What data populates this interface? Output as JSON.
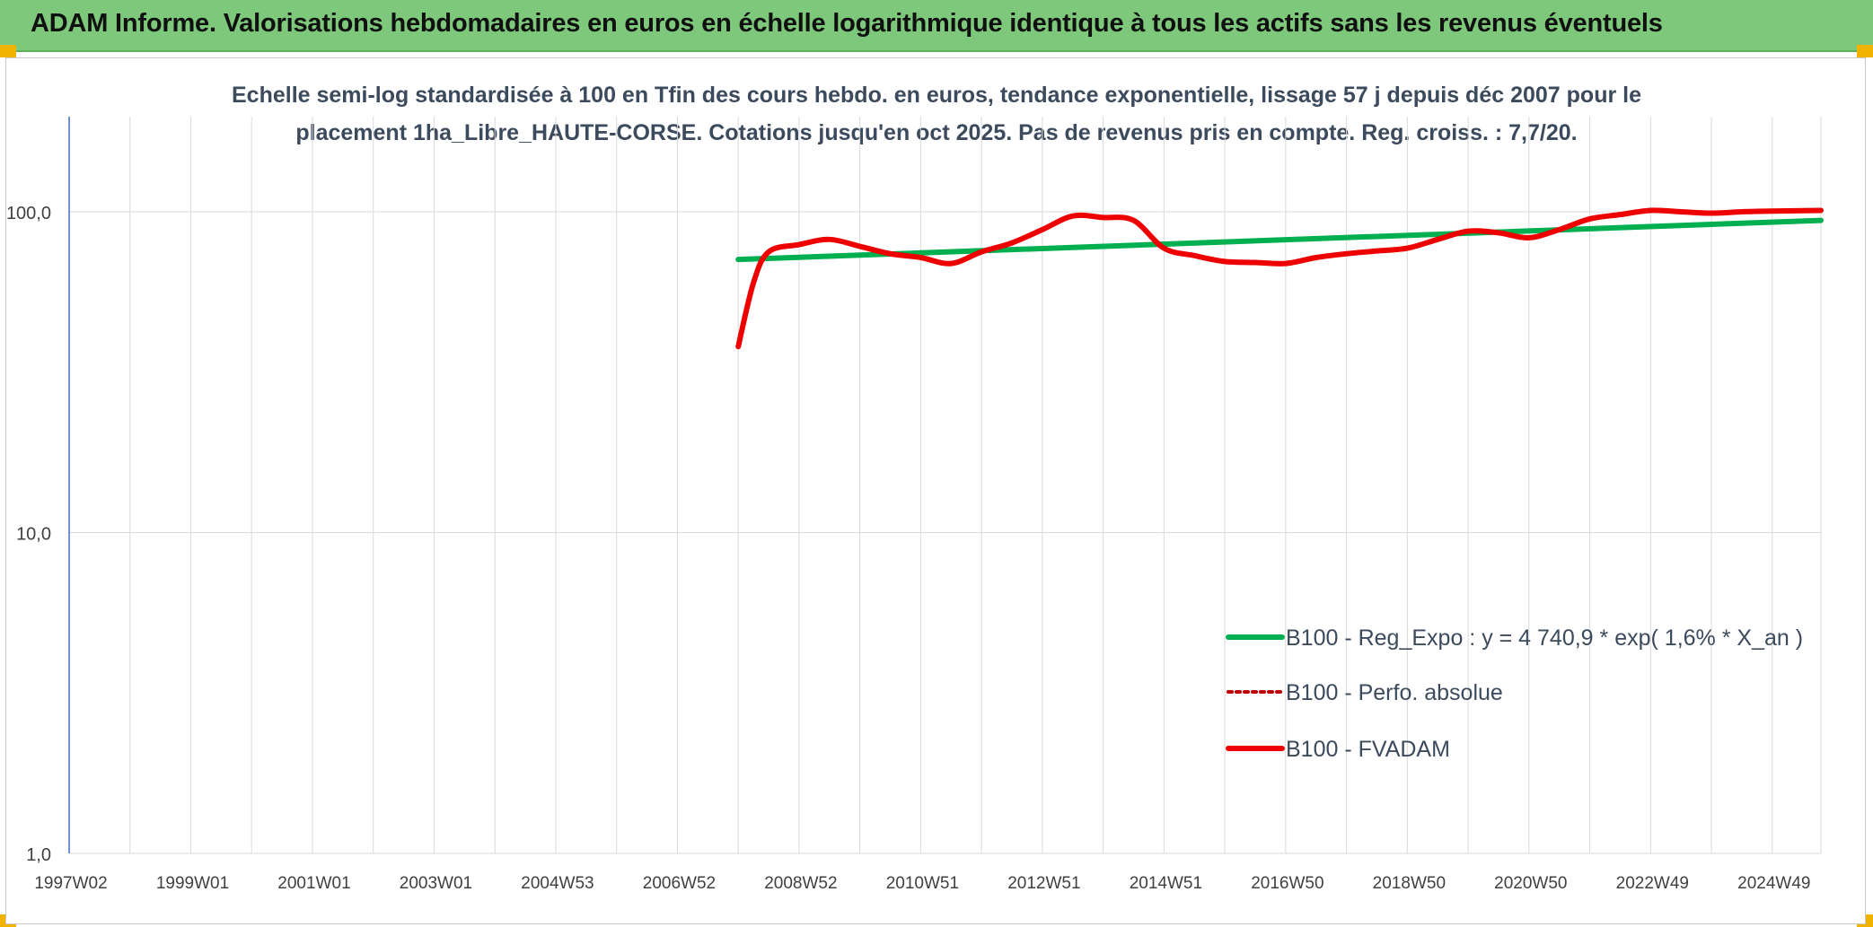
{
  "banner": {
    "title": "ADAM Informe. Valorisations hebdomadaires en euros en échelle logarithmique identique à tous les actifs sans les revenus éventuels"
  },
  "colors": {
    "banner_bg": "#7dc87a",
    "regression": "#00b050",
    "fvadam": "#ee0000",
    "perfo": "#c00000",
    "grid": "#d9d9d9",
    "axis_text": "#404040",
    "title_text": "#3b4a5c"
  },
  "chart_data": {
    "type": "line",
    "title_line1": "Echelle semi-log standardisée à 100 en Tfin des cours hebdo. en euros, tendance exponentielle, lissage 57 j depuis déc 2007 pour le",
    "title_line2": "placement 1ha_Libre_HAUTE-CORSE. Cotations jusqu'en oct 2025. Pas de revenus pris en compte. Reg. croiss. : 7,7/20.",
    "y_scale": "log",
    "ylim": [
      1,
      200
    ],
    "y_ticks": [
      1,
      10,
      100
    ],
    "y_tick_labels": [
      "1,0",
      "10,0",
      "100,0"
    ],
    "xlim": [
      1997.0,
      2025.8
    ],
    "x_tick_labels": [
      "1997W02",
      "1999W01",
      "2001W01",
      "2003W01",
      "2004W53",
      "2006W52",
      "2008W52",
      "2010W51",
      "2012W51",
      "2014W51",
      "2016W50",
      "2018W50",
      "2020W50",
      "2022W49",
      "2024W49"
    ],
    "x_tick_positions": [
      1997.0,
      1999.0,
      2001.0,
      2003.0,
      2005.0,
      2007.0,
      2009.0,
      2011.0,
      2013.0,
      2015.0,
      2017.0,
      2019.0,
      2021.0,
      2023.0,
      2025.0
    ],
    "grid": true,
    "legend_position": "bottom-right",
    "series": [
      {
        "name": "B100 - Reg_Expo : y = 4 740,9 * exp( 1,6% *  X_an )",
        "style": "solid",
        "x": [
          2008.0,
          2025.8
        ],
        "y": [
          71.0,
          94.0
        ]
      },
      {
        "name": "B100 - Perfo. absolue",
        "style": "dotted",
        "x": [],
        "y": []
      },
      {
        "name": "B100 - FVADAM",
        "style": "solid",
        "x": [
          2008.0,
          2008.25,
          2008.5,
          2009.0,
          2009.5,
          2010.0,
          2010.5,
          2011.0,
          2011.5,
          2012.0,
          2012.5,
          2013.0,
          2013.5,
          2014.0,
          2014.5,
          2015.0,
          2015.5,
          2016.0,
          2016.5,
          2017.0,
          2017.5,
          2018.0,
          2018.5,
          2019.0,
          2019.5,
          2020.0,
          2020.5,
          2021.0,
          2021.5,
          2022.0,
          2022.5,
          2023.0,
          2023.5,
          2024.0,
          2024.5,
          2025.0,
          2025.8
        ],
        "y": [
          38.0,
          60.0,
          75.0,
          79.0,
          82.0,
          78.0,
          74.0,
          72.0,
          69.0,
          75.0,
          80.0,
          88.0,
          97.0,
          96.0,
          94.0,
          77.0,
          73.0,
          70.0,
          69.5,
          69.0,
          72.0,
          74.0,
          75.5,
          77.0,
          82.0,
          87.0,
          86.0,
          83.0,
          88.0,
          95.0,
          98.0,
          101.0,
          100.0,
          99.0,
          100.0,
          100.5,
          101.0
        ]
      }
    ]
  }
}
